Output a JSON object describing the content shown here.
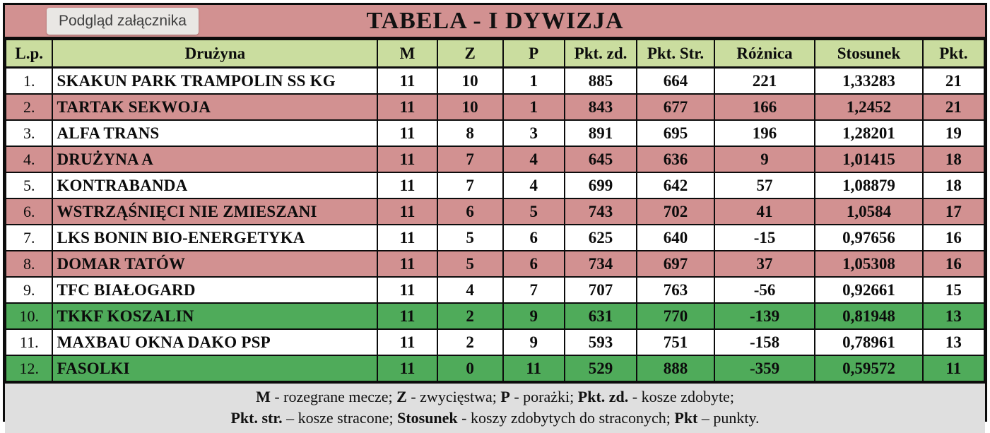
{
  "tooltip": {
    "label": "Podgląd załącznika"
  },
  "title": "TABELA - I DYWIZJA",
  "columns": [
    "L.p.",
    "Drużyna",
    "M",
    "Z",
    "P",
    "Pkt. zd.",
    "Pkt. Str.",
    "Różnica",
    "Stosunek",
    "Pkt."
  ],
  "rows": [
    {
      "lp": "1.",
      "team": "SKAKUN PARK TRAMPOLIN SS KG",
      "m": "11",
      "z": "10",
      "p": "1",
      "pkt_zd": "885",
      "pkt_str": "664",
      "roznica": "221",
      "stosunek": "1,33283",
      "pkt": "21",
      "zone": "white"
    },
    {
      "lp": "2.",
      "team": "TARTAK SEKWOJA",
      "m": "11",
      "z": "10",
      "p": "1",
      "pkt_zd": "843",
      "pkt_str": "677",
      "roznica": "166",
      "stosunek": "1,2452",
      "pkt": "21",
      "zone": "pink"
    },
    {
      "lp": "3.",
      "team": "ALFA TRANS",
      "m": "11",
      "z": "8",
      "p": "3",
      "pkt_zd": "891",
      "pkt_str": "695",
      "roznica": "196",
      "stosunek": "1,28201",
      "pkt": "19",
      "zone": "white"
    },
    {
      "lp": "4.",
      "team": "DRUŻYNA A",
      "m": "11",
      "z": "7",
      "p": "4",
      "pkt_zd": "645",
      "pkt_str": "636",
      "roznica": "9",
      "stosunek": "1,01415",
      "pkt": "18",
      "zone": "pink"
    },
    {
      "lp": "5.",
      "team": "KONTRABANDA",
      "m": "11",
      "z": "7",
      "p": "4",
      "pkt_zd": "699",
      "pkt_str": "642",
      "roznica": "57",
      "stosunek": "1,08879",
      "pkt": "18",
      "zone": "white"
    },
    {
      "lp": "6.",
      "team": "WSTRZĄŚNIĘCI NIE ZMIESZANI",
      "m": "11",
      "z": "6",
      "p": "5",
      "pkt_zd": "743",
      "pkt_str": "702",
      "roznica": "41",
      "stosunek": "1,0584",
      "pkt": "17",
      "zone": "pink"
    },
    {
      "lp": "7.",
      "team": "LKS BONIN BIO-ENERGETYKA",
      "m": "11",
      "z": "5",
      "p": "6",
      "pkt_zd": "625",
      "pkt_str": "640",
      "roznica": "-15",
      "stosunek": "0,97656",
      "pkt": "16",
      "zone": "white"
    },
    {
      "lp": "8.",
      "team": "DOMAR TATÓW",
      "m": "11",
      "z": "5",
      "p": "6",
      "pkt_zd": "734",
      "pkt_str": "697",
      "roznica": "37",
      "stosunek": "1,05308",
      "pkt": "16",
      "zone": "pink"
    },
    {
      "lp": "9.",
      "team": "TFC BIAŁOGARD",
      "m": "11",
      "z": "4",
      "p": "7",
      "pkt_zd": "707",
      "pkt_str": "763",
      "roznica": "-56",
      "stosunek": "0,92661",
      "pkt": "15",
      "zone": "white"
    },
    {
      "lp": "10.",
      "team": "TKKF KOSZALIN",
      "m": "11",
      "z": "2",
      "p": "9",
      "pkt_zd": "631",
      "pkt_str": "770",
      "roznica": "-139",
      "stosunek": "0,81948",
      "pkt": "13",
      "zone": "green"
    },
    {
      "lp": "11.",
      "team": "MAXBAU OKNA DAKO PSP",
      "m": "11",
      "z": "2",
      "p": "9",
      "pkt_zd": "593",
      "pkt_str": "751",
      "roznica": "-158",
      "stosunek": "0,78961",
      "pkt": "13",
      "zone": "white"
    },
    {
      "lp": "12.",
      "team": "FASOLKI",
      "m": "11",
      "z": "0",
      "p": "11",
      "pkt_zd": "529",
      "pkt_str": "888",
      "roznica": "-359",
      "stosunek": "0,59572",
      "pkt": "11",
      "zone": "green"
    }
  ],
  "legend": {
    "line1": [
      {
        "text": "M",
        "bold": true
      },
      {
        "text": " - rozegrane mecze; ",
        "bold": false
      },
      {
        "text": "Z",
        "bold": true
      },
      {
        "text": " - zwycięstwa; ",
        "bold": false
      },
      {
        "text": "P",
        "bold": true
      },
      {
        "text": " - porażki; ",
        "bold": false
      },
      {
        "text": "Pkt. zd.",
        "bold": true
      },
      {
        "text": " - kosze zdobyte;",
        "bold": false
      }
    ],
    "line2": [
      {
        "text": "Pkt. str.",
        "bold": true
      },
      {
        "text": " – kosze stracone; ",
        "bold": false
      },
      {
        "text": "Stosunek",
        "bold": true
      },
      {
        "text": " - koszy zdobytych do straconych; ",
        "bold": false
      },
      {
        "text": "Pkt",
        "bold": true
      },
      {
        "text": " – punkty.",
        "bold": false
      }
    ]
  },
  "colors": {
    "pink": "#d29191",
    "green": "#4fab5a",
    "headergreen": "#cadd9f",
    "gray": "#dfdfdf"
  }
}
